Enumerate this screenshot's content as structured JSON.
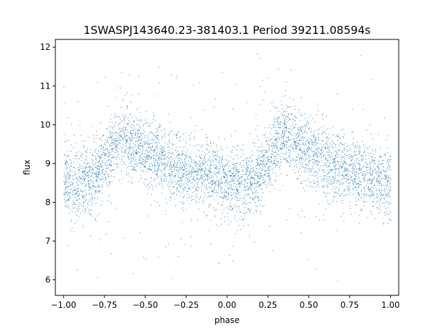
{
  "chart_data": {
    "type": "scatter",
    "title": "1SWASPJ143640.23-381403.1 Period 39211.08594s",
    "xlabel": "phase",
    "ylabel": "flux",
    "xlim": [
      -1.05,
      1.05
    ],
    "ylim": [
      5.6,
      12.2
    ],
    "x_ticks": [
      "−1.00",
      "−0.75",
      "−0.50",
      "−0.25",
      "0.00",
      "0.25",
      "0.50",
      "0.75",
      "1.00"
    ],
    "y_ticks": [
      "6",
      "7",
      "8",
      "9",
      "10",
      "11",
      "12"
    ],
    "grid": false,
    "point_color": "#1f77b4",
    "series": [
      {
        "phase_profile": [
          [
            0.0,
            8.55
          ],
          [
            0.05,
            8.5
          ],
          [
            0.1,
            8.45
          ],
          [
            0.15,
            8.55
          ],
          [
            0.2,
            8.75
          ],
          [
            0.25,
            9.05
          ],
          [
            0.3,
            9.55
          ],
          [
            0.35,
            9.75
          ],
          [
            0.4,
            9.6
          ],
          [
            0.45,
            9.45
          ],
          [
            0.5,
            9.3
          ],
          [
            0.55,
            9.15
          ],
          [
            0.6,
            9.05
          ],
          [
            0.65,
            8.95
          ],
          [
            0.7,
            8.9
          ],
          [
            0.75,
            8.8
          ],
          [
            0.8,
            8.75
          ],
          [
            0.85,
            8.7
          ],
          [
            0.9,
            8.65
          ],
          [
            0.95,
            8.6
          ],
          [
            1.0,
            8.55
          ]
        ],
        "scatter_sd": 0.45,
        "x_range": [
          -1.0,
          1.0
        ]
      }
    ]
  }
}
